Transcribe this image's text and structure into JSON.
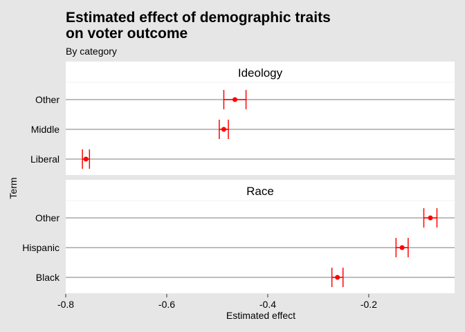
{
  "chart_data": {
    "type": "scatter",
    "subtype": "dot-and-whisker (point estimates with error bars), faceted",
    "title_line1": "Estimated effect of demographic traits",
    "title_line2": "on voter outcome",
    "subtitle": "By category",
    "xlabel": "Estimated effect",
    "ylabel": "Term",
    "xlim": [
      -0.8,
      -0.03
    ],
    "x_ticks": [
      -0.8,
      -0.6,
      -0.4,
      -0.2
    ],
    "x_tick_labels": [
      "-0.8",
      "-0.6",
      "-0.4",
      "-0.2"
    ],
    "grid": "horizontal lines at each term",
    "point_color": "#ff0000",
    "facets": [
      {
        "name": "Ideology",
        "terms": [
          {
            "term": "Other",
            "estimate": -0.465,
            "low": -0.487,
            "high": -0.443
          },
          {
            "term": "Middle",
            "estimate": -0.487,
            "low": -0.496,
            "high": -0.478
          },
          {
            "term": "Liberal",
            "estimate": -0.76,
            "low": -0.767,
            "high": -0.753
          }
        ]
      },
      {
        "name": "Race",
        "terms": [
          {
            "term": "Other",
            "estimate": -0.078,
            "low": -0.091,
            "high": -0.065
          },
          {
            "term": "Hispanic",
            "estimate": -0.134,
            "low": -0.146,
            "high": -0.122
          },
          {
            "term": "Black",
            "estimate": -0.262,
            "low": -0.273,
            "high": -0.251
          }
        ]
      }
    ]
  }
}
